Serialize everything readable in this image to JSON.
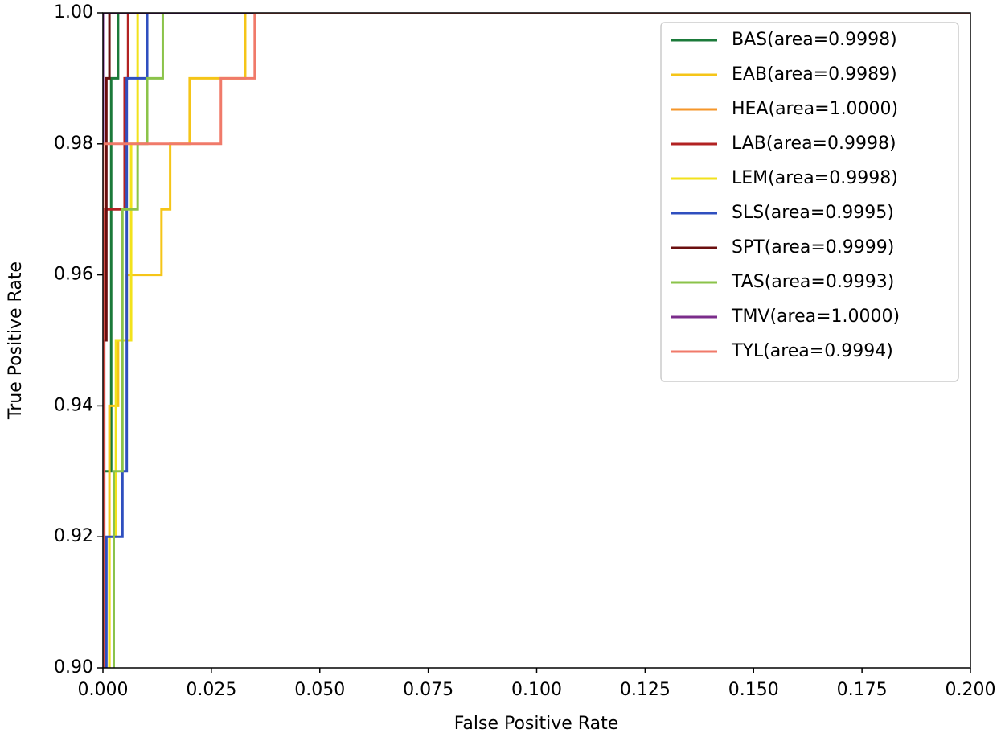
{
  "chart_data": {
    "type": "line",
    "xlabel": "False Positive Rate",
    "ylabel": "True Positive Rate",
    "xlim": [
      0,
      0.2
    ],
    "ylim": [
      0.9,
      1.0
    ],
    "xticks": [
      {
        "value": 0,
        "label": "0.000"
      },
      {
        "value": 0.025,
        "label": "0.025"
      },
      {
        "value": 0.05,
        "label": "0.050"
      },
      {
        "value": 0.075,
        "label": "0.075"
      },
      {
        "value": 0.1,
        "label": "0.100"
      },
      {
        "value": 0.125,
        "label": "0.125"
      },
      {
        "value": 0.15,
        "label": "0.150"
      },
      {
        "value": 0.175,
        "label": "0.175"
      },
      {
        "value": 0.2,
        "label": "0.200"
      }
    ],
    "yticks": [
      {
        "value": 0.9,
        "label": "0.90"
      },
      {
        "value": 0.92,
        "label": "0.92"
      },
      {
        "value": 0.94,
        "label": "0.94"
      },
      {
        "value": 0.96,
        "label": "0.96"
      },
      {
        "value": 0.98,
        "label": "0.98"
      },
      {
        "value": 1.0,
        "label": "1.00"
      }
    ],
    "legend": "upper right",
    "series": [
      {
        "name": "BAS(area=0.9998)",
        "color": "#1b7a3a",
        "x": [
          0,
          0,
          0.0019,
          0.0019,
          0.0035,
          0.0035,
          0.2
        ],
        "values": [
          0.9,
          0.93,
          0.93,
          0.99,
          0.99,
          1.0,
          1.0
        ]
      },
      {
        "name": "EAB(area=0.9989)",
        "color": "#f5c518",
        "x": [
          0.0015,
          0.0015,
          0.0035,
          0.0035,
          0.0055,
          0.0055,
          0.0135,
          0.0135,
          0.0155,
          0.0155,
          0.02,
          0.02,
          0.0328,
          0.0328,
          0.2
        ],
        "values": [
          0.9,
          0.94,
          0.94,
          0.95,
          0.95,
          0.96,
          0.96,
          0.97,
          0.97,
          0.98,
          0.98,
          0.99,
          0.99,
          1.0,
          1.0
        ]
      },
      {
        "name": "HEA(area=1.0000)",
        "color": "#f5962a",
        "x": [
          0,
          0,
          0.2
        ],
        "values": [
          0.9,
          1.0,
          1.0
        ]
      },
      {
        "name": "LAB(area=0.9998)",
        "color": "#b22222",
        "x": [
          0.0003,
          0.0003,
          0.005,
          0.005,
          0.0058,
          0.0058,
          0.2
        ],
        "values": [
          0.9,
          0.97,
          0.97,
          0.99,
          0.99,
          1.0,
          1.0
        ]
      },
      {
        "name": "LEM(area=0.9998)",
        "color": "#f2e21c",
        "x": [
          0.0015,
          0.0015,
          0.003,
          0.003,
          0.0065,
          0.0065,
          0.008,
          0.008,
          0.2
        ],
        "values": [
          0.9,
          0.92,
          0.92,
          0.95,
          0.95,
          0.98,
          0.98,
          1.0,
          1.0
        ]
      },
      {
        "name": "SLS(area=0.9995)",
        "color": "#2f4fbf",
        "x": [
          0.0008,
          0.0008,
          0.0045,
          0.0045,
          0.0055,
          0.0055,
          0.0102,
          0.0102,
          0.2
        ],
        "values": [
          0.9,
          0.92,
          0.92,
          0.93,
          0.93,
          0.99,
          0.99,
          1.0,
          1.0
        ]
      },
      {
        "name": "SPT(area=0.9999)",
        "color": "#6b0f0f",
        "x": [
          0,
          0,
          0.0008,
          0.0008,
          0.0015,
          0.0015,
          0.2
        ],
        "values": [
          0.9,
          0.95,
          0.95,
          0.99,
          0.99,
          1.0,
          1.0
        ]
      },
      {
        "name": "TAS(area=0.9993)",
        "color": "#8bc34a",
        "x": [
          0.0025,
          0.0025,
          0.0045,
          0.0045,
          0.008,
          0.008,
          0.0102,
          0.0102,
          0.0138,
          0.0138,
          0.2
        ],
        "values": [
          0.9,
          0.93,
          0.93,
          0.97,
          0.97,
          0.98,
          0.98,
          0.99,
          0.99,
          1.0,
          1.0
        ]
      },
      {
        "name": "TMV(area=1.0000)",
        "color": "#7b2d8b",
        "x": [
          0,
          0,
          0.2
        ],
        "values": [
          0.9,
          1.0,
          1.0
        ]
      },
      {
        "name": "TYL(area=0.9994)",
        "color": "#f07a6a",
        "x": [
          0,
          0,
          0.0272,
          0.0272,
          0.035,
          0.035,
          0.2
        ],
        "values": [
          0.9,
          0.98,
          0.98,
          0.99,
          0.99,
          1.0,
          1.0
        ]
      }
    ]
  }
}
